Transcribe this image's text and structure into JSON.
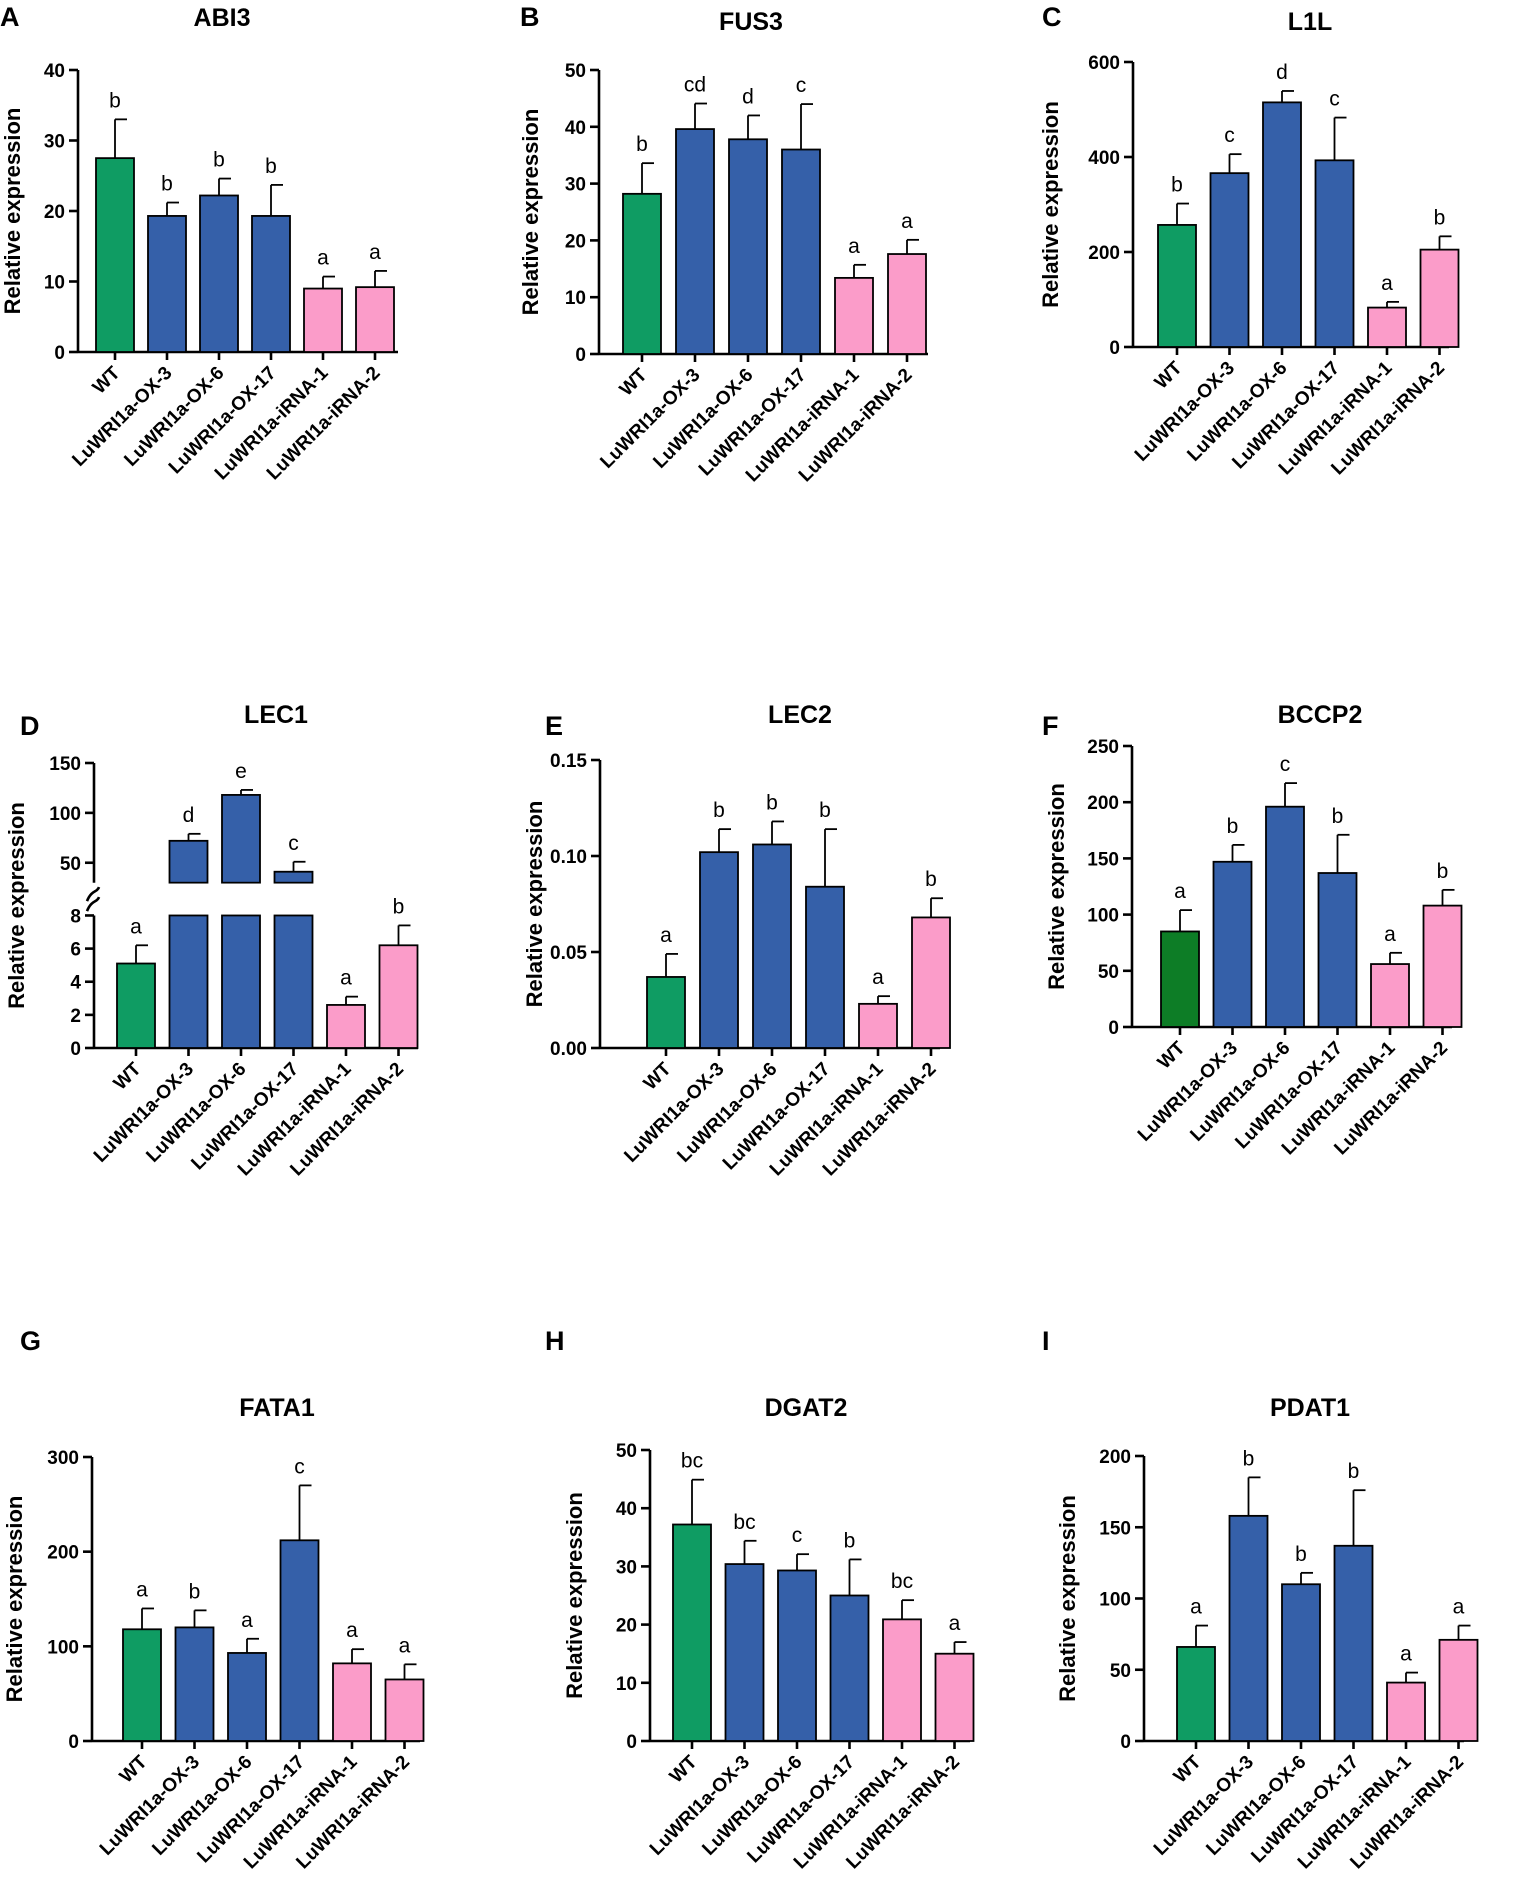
{
  "figure": {
    "colors": {
      "wt": "#0f9c63",
      "wt_dark": "#0d7d26",
      "ox": "#3560a9",
      "irna": "#fb9cc9",
      "axis": "#000000"
    },
    "ylabel": "Relative expression",
    "categories": [
      "WT",
      "LuWRI1a-OX-3",
      "LuWRI1a-OX-6",
      "LuWRI1a-OX-17",
      "LuWRI1a-iRNA-1",
      "LuWRI1a-iRNA-2"
    ]
  },
  "chart_data": [
    {
      "panel": "A",
      "type": "bar",
      "title": "ABI3",
      "ylabel": "Relative expression",
      "categories": [
        "WT",
        "LuWRI1a-OX-3",
        "LuWRI1a-OX-6",
        "LuWRI1a-OX-17",
        "LuWRI1a-iRNA-1",
        "LuWRI1a-iRNA-2"
      ],
      "values": [
        27.5,
        19.3,
        22.2,
        19.3,
        9.0,
        9.2
      ],
      "errors": [
        5.5,
        1.9,
        2.4,
        4.4,
        1.7,
        2.3
      ],
      "letters": [
        "b",
        "b",
        "b",
        "b",
        "a",
        "a"
      ],
      "ylim": [
        0,
        40
      ],
      "yticks": [
        0,
        10,
        20,
        30,
        40
      ],
      "ytick_labels": [
        "0",
        "10",
        "20",
        "30",
        "40"
      ]
    },
    {
      "panel": "B",
      "type": "bar",
      "title": "FUS3",
      "ylabel": "Relative expression",
      "categories": [
        "WT",
        "LuWRI1a-OX-3",
        "LuWRI1a-OX-6",
        "LuWRI1a-OX-17",
        "LuWRI1a-iRNA-1",
        "LuWRI1a-iRNA-2"
      ],
      "values": [
        28.2,
        39.6,
        37.8,
        36.0,
        13.4,
        17.6
      ],
      "errors": [
        5.4,
        4.5,
        4.2,
        8.0,
        2.3,
        2.5
      ],
      "letters": [
        "b",
        "cd",
        "d",
        "c",
        "a",
        "a"
      ],
      "ylim": [
        0,
        50
      ],
      "yticks": [
        0,
        10,
        20,
        30,
        40,
        50
      ],
      "ytick_labels": [
        "0",
        "10",
        "20",
        "30",
        "40",
        "50"
      ]
    },
    {
      "panel": "C",
      "type": "bar",
      "title": "L1L",
      "ylabel": "Relative expression",
      "categories": [
        "WT",
        "LuWRI1a-OX-3",
        "LuWRI1a-OX-6",
        "LuWRI1a-OX-17",
        "LuWRI1a-iRNA-1",
        "LuWRI1a-iRNA-2"
      ],
      "values": [
        257,
        366,
        515,
        393,
        83,
        205
      ],
      "errors": [
        45,
        40,
        24,
        90,
        12,
        28
      ],
      "letters": [
        "b",
        "c",
        "d",
        "c",
        "a",
        "b"
      ],
      "ylim": [
        0,
        600
      ],
      "yticks": [
        0,
        200,
        400,
        600
      ],
      "ytick_labels": [
        "0",
        "200",
        "400",
        "600"
      ]
    },
    {
      "panel": "D",
      "type": "bar",
      "title": "LEC1",
      "ylabel": "Relative expression",
      "axis_break": {
        "lower": [
          0,
          8
        ],
        "upper": [
          30,
          150
        ]
      },
      "categories": [
        "WT",
        "LuWRI1a-OX-3",
        "LuWRI1a-OX-6",
        "LuWRI1a-OX-17",
        "LuWRI1a-iRNA-1",
        "LuWRI1a-iRNA-2"
      ],
      "values": [
        5.1,
        72,
        118,
        41,
        2.6,
        6.2
      ],
      "errors": [
        1.1,
        7,
        5,
        10,
        0.5,
        1.2
      ],
      "letters": [
        "a",
        "d",
        "e",
        "c",
        "a",
        "b"
      ],
      "ylim": [
        0,
        150
      ],
      "yticks": [
        0,
        2,
        4,
        6,
        8,
        50,
        100,
        150
      ],
      "ytick_labels": [
        "0",
        "2",
        "4",
        "6",
        "8",
        "50",
        "100",
        "150"
      ]
    },
    {
      "panel": "E",
      "type": "bar",
      "title": "LEC2",
      "ylabel": "Relative expression",
      "categories": [
        "WT",
        "LuWRI1a-OX-3",
        "LuWRI1a-OX-6",
        "LuWRI1a-OX-17",
        "LuWRI1a-iRNA-1",
        "LuWRI1a-iRNA-2"
      ],
      "values": [
        0.037,
        0.102,
        0.106,
        0.084,
        0.023,
        0.068
      ],
      "errors": [
        0.012,
        0.012,
        0.012,
        0.03,
        0.004,
        0.01
      ],
      "letters": [
        "a",
        "b",
        "b",
        "b",
        "a",
        "b"
      ],
      "ylim": [
        0,
        0.15
      ],
      "yticks": [
        0,
        0.05,
        0.1,
        0.15
      ],
      "ytick_labels": [
        "0.00",
        "0.05",
        "0.10",
        "0.15"
      ]
    },
    {
      "panel": "F",
      "type": "bar",
      "title": "BCCP2",
      "ylabel": "Relative expression",
      "categories": [
        "WT",
        "LuWRI1a-OX-3",
        "LuWRI1a-OX-6",
        "LuWRI1a-OX-17",
        "LuWRI1a-iRNA-1",
        "LuWRI1a-iRNA-2"
      ],
      "values": [
        85,
        147,
        196,
        137,
        56,
        108
      ],
      "errors": [
        19,
        15,
        21,
        34,
        10,
        14
      ],
      "letters": [
        "a",
        "b",
        "c",
        "b",
        "a",
        "b"
      ],
      "ylim": [
        0,
        250
      ],
      "yticks": [
        0,
        50,
        100,
        150,
        200,
        250
      ],
      "ytick_labels": [
        "0",
        "50",
        "100",
        "150",
        "200",
        "250"
      ]
    },
    {
      "panel": "G",
      "type": "bar",
      "title": "FATA1",
      "ylabel": "Relative expression",
      "categories": [
        "WT",
        "LuWRI1a-OX-3",
        "LuWRI1a-OX-6",
        "LuWRI1a-OX-17",
        "LuWRI1a-iRNA-1",
        "LuWRI1a-iRNA-2"
      ],
      "values": [
        118,
        120,
        93,
        212,
        82,
        65
      ],
      "errors": [
        22,
        18,
        15,
        58,
        15,
        16
      ],
      "letters": [
        "a",
        "b",
        "a",
        "c",
        "a",
        "a"
      ],
      "ylim": [
        0,
        300
      ],
      "yticks": [
        0,
        100,
        200,
        300
      ],
      "ytick_labels": [
        "0",
        "100",
        "200",
        "300"
      ]
    },
    {
      "panel": "H",
      "type": "bar",
      "title": "DGAT2",
      "ylabel": "Relative expression",
      "categories": [
        "WT",
        "LuWRI1a-OX-3",
        "LuWRI1a-OX-6",
        "LuWRI1a-OX-17",
        "LuWRI1a-iRNA-1",
        "LuWRI1a-iRNA-2"
      ],
      "values": [
        37.2,
        30.4,
        29.3,
        25.0,
        20.9,
        15.0
      ],
      "errors": [
        7.7,
        4.0,
        2.8,
        6.2,
        3.3,
        2.0
      ],
      "letters": [
        "bc",
        "bc",
        "c",
        "b",
        "bc",
        "a"
      ],
      "ylim": [
        0,
        50
      ],
      "yticks": [
        0,
        10,
        20,
        30,
        40,
        50
      ],
      "ytick_labels": [
        "0",
        "10",
        "20",
        "30",
        "40",
        "50"
      ]
    },
    {
      "panel": "I",
      "type": "bar",
      "title": "PDAT1",
      "ylabel": "Relative expression",
      "categories": [
        "WT",
        "LuWRI1a-OX-3",
        "LuWRI1a-OX-6",
        "LuWRI1a-OX-17",
        "LuWRI1a-iRNA-1",
        "LuWRI1a-iRNA-2"
      ],
      "values": [
        66,
        158,
        110,
        137,
        41,
        71
      ],
      "errors": [
        15,
        27,
        8,
        39,
        7,
        10
      ],
      "letters": [
        "a",
        "b",
        "b",
        "b",
        "a",
        "a"
      ],
      "ylim": [
        0,
        200
      ],
      "yticks": [
        0,
        50,
        100,
        150,
        200
      ],
      "ytick_labels": [
        "0",
        "50",
        "100",
        "150",
        "200"
      ]
    }
  ]
}
